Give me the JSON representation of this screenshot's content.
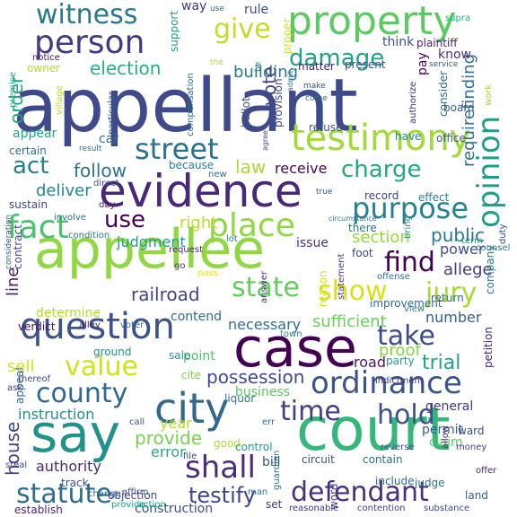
{
  "words": [
    {
      "text": "appellant",
      "color": "#3e4a89"
    },
    {
      "text": "court",
      "color": "#35b779"
    },
    {
      "text": "appellee",
      "color": "#90d743"
    },
    {
      "text": "case",
      "color": "#440154"
    },
    {
      "text": "evidence",
      "color": "#482878"
    },
    {
      "text": "say",
      "color": "#21918c"
    },
    {
      "text": "property",
      "color": "#5ec962"
    },
    {
      "text": "city",
      "color": "#31688e"
    },
    {
      "text": "testimony",
      "color": "#a0da39"
    },
    {
      "text": "person",
      "color": "#443983"
    },
    {
      "text": "question",
      "color": "#3b528b"
    },
    {
      "text": "place",
      "color": "#8fd744"
    },
    {
      "text": "fact",
      "color": "#4ac16d"
    },
    {
      "text": "purpose",
      "color": "#26828e"
    },
    {
      "text": "street",
      "color": "#2c728e"
    },
    {
      "text": "witness",
      "color": "#2a788e"
    },
    {
      "text": "give",
      "color": "#bddf26"
    },
    {
      "text": "opinion",
      "color": "#1f9e89"
    },
    {
      "text": "ordinance",
      "color": "#3a548c"
    },
    {
      "text": "statute",
      "color": "#2e6e8e"
    },
    {
      "text": "defendant",
      "color": "#46327e"
    },
    {
      "text": "shall",
      "color": "#472d7b"
    },
    {
      "text": "county",
      "color": "#31688e"
    },
    {
      "text": "value",
      "color": "#d2e21b"
    },
    {
      "text": "show",
      "color": "#d8e219"
    },
    {
      "text": "jury",
      "color": "#a5db36"
    },
    {
      "text": "state",
      "color": "#65cb5e"
    },
    {
      "text": "find",
      "color": "#440154"
    },
    {
      "text": "take",
      "color": "#3e4c8a"
    },
    {
      "text": "time",
      "color": "#433e85"
    },
    {
      "text": "hold",
      "color": "#3b528b"
    },
    {
      "text": "charge",
      "color": "#22a884"
    },
    {
      "text": "damage",
      "color": "#1fa187"
    },
    {
      "text": "act",
      "color": "#277f8e"
    },
    {
      "text": "use",
      "color": "#440154"
    },
    {
      "text": "election",
      "color": "#29af7f"
    },
    {
      "text": "follow",
      "color": "#2c728e"
    },
    {
      "text": "law",
      "color": "#a8db34"
    },
    {
      "text": "testify",
      "color": "#3f4788"
    },
    {
      "text": "possession",
      "color": "#3e4a89"
    },
    {
      "text": "railroad",
      "color": "#414487"
    },
    {
      "text": "trial",
      "color": "#20a386"
    },
    {
      "text": "provide",
      "color": "#7ad151"
    },
    {
      "text": "sufficient",
      "color": "#6ccd5a"
    },
    {
      "text": "deliver",
      "color": "#25858e"
    },
    {
      "text": "order",
      "color": "#20a486"
    },
    {
      "text": "building",
      "color": "#287c8e"
    },
    {
      "text": "vote",
      "color": "#404688"
    },
    {
      "text": "public",
      "color": "#2a788e"
    },
    {
      "text": "section",
      "color": "#95d840"
    },
    {
      "text": "right",
      "color": "#b8de29"
    },
    {
      "text": "house",
      "color": "#414487"
    },
    {
      "text": "line",
      "color": "#48186a"
    },
    {
      "text": "instruction",
      "color": "#21918c"
    },
    {
      "text": "sell",
      "color": "#d5e21a"
    },
    {
      "text": "proof",
      "color": "#86d549"
    },
    {
      "text": "road",
      "color": "#481769"
    },
    {
      "text": "number",
      "color": "#34618d"
    },
    {
      "text": "power",
      "color": "#3b528b"
    },
    {
      "text": "allege",
      "color": "#443b84"
    },
    {
      "text": "requirefinding",
      "color": "#2e6f8e"
    },
    {
      "text": "receive",
      "color": "#46085c"
    },
    {
      "text": "judgment",
      "color": "#1fa088"
    },
    {
      "text": "necessary",
      "color": "#2d708e"
    },
    {
      "text": "contend",
      "color": "#2f6c8e"
    },
    {
      "text": "determine",
      "color": "#b5de2b"
    },
    {
      "text": "authority",
      "color": "#472c7a"
    },
    {
      "text": "error",
      "color": "#27ad81"
    },
    {
      "text": "year",
      "color": "#b0dd2f"
    },
    {
      "text": "point",
      "color": "#4ec36b"
    },
    {
      "text": "business",
      "color": "#5ac864"
    },
    {
      "text": "establish",
      "color": "#482576"
    },
    {
      "text": "construction",
      "color": "#3d4d8a"
    },
    {
      "text": "bill",
      "color": "#39568c"
    },
    {
      "text": "permit",
      "color": "#34608d"
    },
    {
      "text": "general",
      "color": "#443983"
    },
    {
      "text": "claim",
      "color": "#5cc863"
    },
    {
      "text": "land",
      "color": "#38598c"
    },
    {
      "text": "rule",
      "color": "#3e4a89"
    },
    {
      "text": "way",
      "color": "#453882"
    },
    {
      "text": "know",
      "color": "#472d7b"
    },
    {
      "text": "think",
      "color": "#3b528b"
    },
    {
      "text": "present",
      "color": "#3e4c8a"
    },
    {
      "text": "plaintiff",
      "color": "#482173"
    },
    {
      "text": "pay",
      "color": "#440154"
    },
    {
      "text": "matter",
      "color": "#481d6f"
    },
    {
      "text": "support",
      "color": "#1e9c89"
    },
    {
      "text": "owner",
      "color": "#b2dd2d"
    },
    {
      "text": "notice",
      "color": "#471365"
    },
    {
      "text": "appear",
      "color": "#22a785"
    },
    {
      "text": "car",
      "color": "#2c738e"
    },
    {
      "text": "certain",
      "color": "#2d708e"
    },
    {
      "text": "proper",
      "color": "#d0e11c"
    },
    {
      "text": "provision",
      "color": "#3f4889"
    },
    {
      "text": "ballot",
      "color": "#3b528b"
    },
    {
      "text": "because",
      "color": "#287d8e"
    },
    {
      "text": "sustain",
      "color": "#404588"
    },
    {
      "text": "there",
      "color": "#2a788e"
    },
    {
      "text": "issue",
      "color": "#46327e"
    },
    {
      "text": "foot",
      "color": "#3e4989"
    },
    {
      "text": "effect",
      "color": "#24878e"
    },
    {
      "text": "record",
      "color": "#414487"
    },
    {
      "text": "verdict",
      "color": "#471063"
    },
    {
      "text": "contract",
      "color": "#3c4f8a"
    },
    {
      "text": "appeal",
      "color": "#2f6b8e"
    },
    {
      "text": "ground",
      "color": "#20928c"
    },
    {
      "text": "sale",
      "color": "#1f998a"
    },
    {
      "text": "liquor",
      "color": "#2b748e"
    },
    {
      "text": "cite",
      "color": "#7fd34e"
    },
    {
      "text": "good",
      "color": "#b2dd2d"
    },
    {
      "text": "control",
      "color": "#1fa187"
    },
    {
      "text": "circuit",
      "color": "#3d4e8a"
    },
    {
      "text": "contain",
      "color": "#2e6e8e"
    },
    {
      "text": "judge",
      "color": "#2c738e"
    },
    {
      "text": "track",
      "color": "#3b528b"
    },
    {
      "text": "objection",
      "color": "#414487"
    },
    {
      "text": "action",
      "color": "#1f9a8a"
    },
    {
      "text": "set",
      "color": "#46337f"
    },
    {
      "text": "word",
      "color": "#3f4788"
    },
    {
      "text": "include",
      "color": "#31688e"
    },
    {
      "text": "petition",
      "color": "#482475"
    },
    {
      "text": "company",
      "color": "#29798e"
    },
    {
      "text": "return",
      "color": "#2f6c8e"
    },
    {
      "text": "view",
      "color": "#277e8e"
    },
    {
      "text": "party",
      "color": "#1fa088"
    },
    {
      "text": "indictment",
      "color": "#46337f"
    },
    {
      "text": "money",
      "color": "#433e85"
    },
    {
      "text": "ward",
      "color": "#3e4a89"
    },
    {
      "text": "offer",
      "color": "#482576"
    },
    {
      "text": "duty",
      "color": "#3f4788"
    },
    {
      "text": "term",
      "color": "#1f958b"
    },
    {
      "text": "counsel",
      "color": "#2a768e"
    },
    {
      "text": "office",
      "color": "#38598c"
    },
    {
      "text": "consider",
      "color": "#2e6d8e"
    },
    {
      "text": "board",
      "color": "#32658e"
    },
    {
      "text": "refuse",
      "color": "#3a548c"
    },
    {
      "text": "have",
      "color": "#23898e"
    },
    {
      "text": "authorize",
      "color": "#46307e"
    },
    {
      "text": "improvement",
      "color": "#2f6b8e"
    },
    {
      "text": "statement",
      "color": "#443a83"
    },
    {
      "text": "answer",
      "color": "#46307e"
    },
    {
      "text": "reason",
      "color": "#d5e21a"
    },
    {
      "text": "offense",
      "color": "#2d708e"
    },
    {
      "text": "circumstance",
      "color": "#2c728e"
    },
    {
      "text": "bring",
      "color": "#1f958b"
    },
    {
      "text": "compensation",
      "color": "#2c738e"
    },
    {
      "text": "agree",
      "color": "#414487"
    },
    {
      "text": "admit",
      "color": "#2d708e"
    },
    {
      "text": "particular",
      "color": "#355f8d"
    },
    {
      "text": "village",
      "color": "#b8de29"
    },
    {
      "text": "premise",
      "color": "#27ad81"
    },
    {
      "text": "direct",
      "color": "#3b528b"
    },
    {
      "text": "day",
      "color": "#48186a"
    },
    {
      "text": "involve",
      "color": "#2e6e8e"
    },
    {
      "text": "condition",
      "color": "#2a788e"
    },
    {
      "text": "consideration",
      "color": "#38598c"
    },
    {
      "text": "request",
      "color": "#482878"
    },
    {
      "text": "lot",
      "color": "#25848e"
    },
    {
      "text": "go",
      "color": "#443983"
    },
    {
      "text": "pass",
      "color": "#e5e419"
    },
    {
      "text": "alley",
      "color": "#481f70"
    },
    {
      "text": "voter",
      "color": "#31688e"
    },
    {
      "text": "town",
      "color": "#277f8e"
    },
    {
      "text": "thereof",
      "color": "#3e4a89"
    },
    {
      "text": "ask",
      "color": "#443983"
    },
    {
      "text": "call",
      "color": "#3b528b"
    },
    {
      "text": "err",
      "color": "#2c738e"
    },
    {
      "text": "file",
      "color": "#3f4788"
    },
    {
      "text": "steal",
      "color": "#414487"
    },
    {
      "text": "change",
      "color": "#35608d"
    },
    {
      "text": "affirm",
      "color": "#3b528b"
    },
    {
      "text": "provide",
      "color": "#1fa088"
    },
    {
      "text": "man",
      "color": "#2a778e"
    },
    {
      "text": "guardian",
      "color": "#2c728e"
    },
    {
      "text": "reasonable",
      "color": "#46327e"
    },
    {
      "text": "contention",
      "color": "#433e85"
    },
    {
      "text": "substance",
      "color": "#3e4a89"
    },
    {
      "text": "reverse",
      "color": "#3b528b"
    },
    {
      "text": "allow",
      "color": "#472c7a"
    },
    {
      "text": "supra",
      "color": "#27ad81"
    },
    {
      "text": "work",
      "color": "#a0da39"
    },
    {
      "text": "new",
      "color": "#2c728e"
    },
    {
      "text": "true",
      "color": "#3b528b"
    },
    {
      "text": "result",
      "color": "#2d708e"
    },
    {
      "text": "make",
      "color": "#38598c"
    },
    {
      "text": "come",
      "color": "#2c738e"
    },
    {
      "text": "service",
      "color": "#32648e"
    },
    {
      "text": "use",
      "color": "#2c738e"
    },
    {
      "text": "the",
      "color": "#b5de2b"
    },
    {
      "text": "be",
      "color": "#2a788e"
    }
  ]
}
